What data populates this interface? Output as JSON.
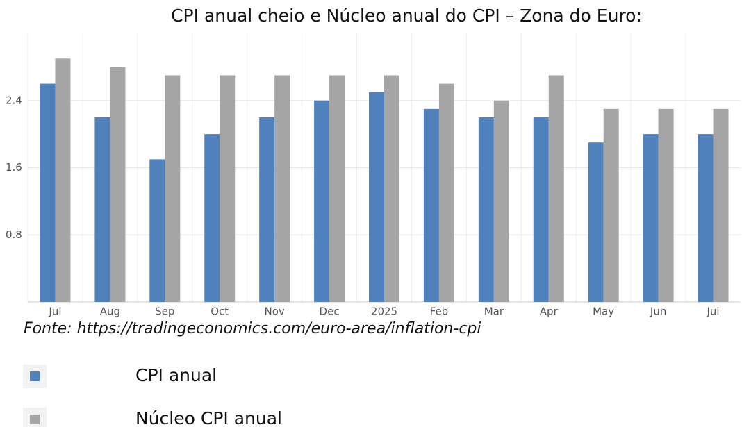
{
  "chart_data": {
    "type": "bar",
    "title": "CPI anual cheio e Núcleo anual do CPI – Zona do Euro:",
    "source": "Fonte: https://tradingeconomics.com/euro-area/inflation-cpi",
    "categories": [
      "Jul",
      "Aug",
      "Sep",
      "Oct",
      "Nov",
      "Dec",
      "2025",
      "Feb",
      "Mar",
      "Apr",
      "May",
      "Jun",
      "Jul"
    ],
    "series": [
      {
        "name": "CPI anual",
        "color": "#4f81bd",
        "values": [
          2.6,
          2.2,
          1.7,
          2.0,
          2.2,
          2.4,
          2.5,
          2.3,
          2.2,
          2.2,
          1.9,
          2.0,
          2.0
        ]
      },
      {
        "name": "Núcleo CPI anual",
        "color": "#a5a5a5",
        "values": [
          2.9,
          2.8,
          2.7,
          2.7,
          2.7,
          2.7,
          2.7,
          2.6,
          2.4,
          2.7,
          2.3,
          2.3,
          2.3
        ]
      }
    ],
    "ylim": [
      0,
      3.2
    ],
    "yticks": [
      0.8,
      1.6,
      2.4
    ],
    "grid": true
  }
}
